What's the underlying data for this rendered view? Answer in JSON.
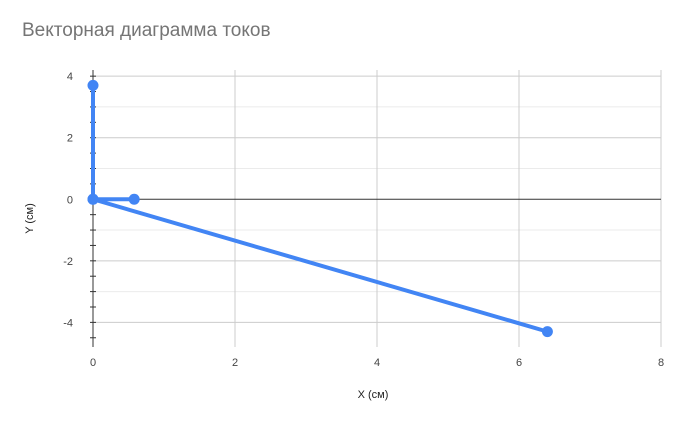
{
  "chart_data": {
    "type": "line",
    "title": "Векторная диаграмма токов",
    "xlabel": "X (см)",
    "ylabel": "Y (см)",
    "xlim": [
      0,
      8
    ],
    "ylim": [
      -4.8,
      4.2
    ],
    "x_ticks": [
      0,
      2,
      4,
      6,
      8
    ],
    "y_ticks": [
      -4,
      -2,
      0,
      2,
      4
    ],
    "x_tick_labels": [
      "0",
      "2",
      "4",
      "6",
      "8"
    ],
    "y_tick_labels": [
      "-4",
      "-2",
      "0",
      "2",
      "4"
    ],
    "grid": true,
    "legend": "none",
    "series": [
      {
        "color": "#4285f4",
        "points": [
          {
            "x": 0,
            "y": 3.7
          },
          {
            "x": 0,
            "y": 0
          },
          {
            "x": 0.58,
            "y": 0
          },
          {
            "x": 0,
            "y": 0
          },
          {
            "x": 6.4,
            "y": -4.3
          }
        ]
      }
    ]
  },
  "colors": {
    "series": "#4285f4",
    "grid": "#cccccc",
    "minor_grid": "#ebebeb",
    "axis": "#333333",
    "title": "#757575"
  }
}
